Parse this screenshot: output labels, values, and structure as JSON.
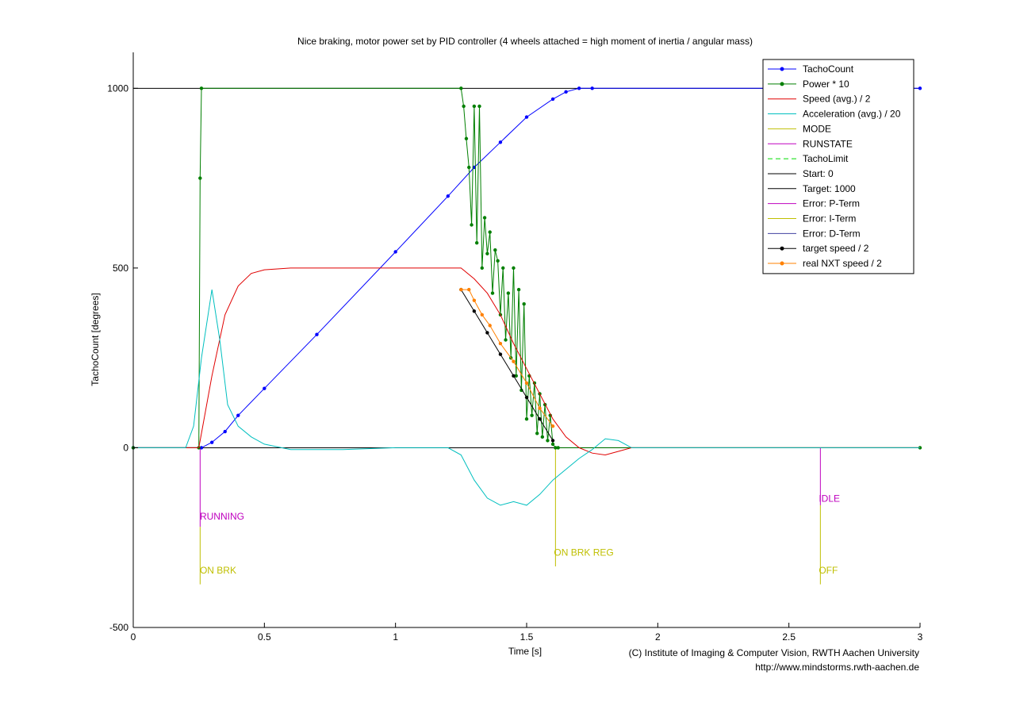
{
  "chart_data": {
    "type": "line",
    "title": "Nice braking, motor power set by PID controller (4 wheels attached = high moment of inertia / angular mass)",
    "xlabel": "Time [s]",
    "ylabel": "TachoCount [degrees]",
    "xlim": [
      0,
      3
    ],
    "ylim": [
      -500,
      1100
    ],
    "xticks": [
      0,
      0.5,
      1,
      1.5,
      2,
      2.5,
      3
    ],
    "xtick_labels": [
      "0",
      "0.5",
      "1",
      "1.5",
      "2",
      "2.5",
      "3"
    ],
    "yticks": [
      -500,
      0,
      500,
      1000
    ],
    "ytick_labels": [
      "-500",
      "0",
      "500",
      "1000"
    ],
    "grid": false,
    "legend_position": "top-right",
    "legend": [
      {
        "label": "TachoCount",
        "color": "#0000ff",
        "style": "solid",
        "marker": "dot"
      },
      {
        "label": "Power * 10",
        "color": "#007f00",
        "style": "solid",
        "marker": "dot"
      },
      {
        "label": "Speed (avg.) / 2",
        "color": "#e00000",
        "style": "solid",
        "marker": ""
      },
      {
        "label": "Acceleration (avg.) / 20",
        "color": "#00bfbf",
        "style": "solid",
        "marker": ""
      },
      {
        "label": "MODE",
        "color": "#bfbf00",
        "style": "solid",
        "marker": ""
      },
      {
        "label": "RUNSTATE",
        "color": "#bf00bf",
        "style": "solid",
        "marker": ""
      },
      {
        "label": "TachoLimit",
        "color": "#00dd00",
        "style": "dashed",
        "marker": ""
      },
      {
        "label": "Start: 0",
        "color": "#000000",
        "style": "solid",
        "marker": ""
      },
      {
        "label": "Target: 1000",
        "color": "#000000",
        "style": "solid",
        "marker": ""
      },
      {
        "label": "Error: P-Term",
        "color": "#bf00bf",
        "style": "solid",
        "marker": ""
      },
      {
        "label": "Error: I-Term",
        "color": "#bfbf00",
        "style": "solid",
        "marker": ""
      },
      {
        "label": "Error: D-Term",
        "color": "#4040a0",
        "style": "solid",
        "marker": ""
      },
      {
        "label": "target speed / 2",
        "color": "#000000",
        "style": "solid",
        "marker": "dot"
      },
      {
        "label": "real NXT speed / 2",
        "color": "#ff8000",
        "style": "solid",
        "marker": "dot"
      }
    ],
    "series": [
      {
        "name": "TachoCount",
        "x": [
          0,
          0.26,
          0.3,
          0.35,
          0.4,
          0.5,
          0.7,
          1.0,
          1.2,
          1.3,
          1.4,
          1.5,
          1.6,
          1.65,
          1.7,
          1.75,
          3.0
        ],
        "y": [
          0,
          0,
          15,
          45,
          90,
          165,
          315,
          545,
          700,
          780,
          850,
          920,
          970,
          990,
          1000,
          1000,
          1000
        ]
      },
      {
        "name": "Power * 10",
        "x": [
          0,
          0.25,
          0.255,
          0.26,
          1.25,
          1.26,
          1.27,
          1.28,
          1.29,
          1.3,
          1.31,
          1.32,
          1.33,
          1.34,
          1.35,
          1.36,
          1.37,
          1.38,
          1.39,
          1.4,
          1.41,
          1.42,
          1.43,
          1.44,
          1.45,
          1.46,
          1.47,
          1.48,
          1.49,
          1.5,
          1.51,
          1.52,
          1.53,
          1.54,
          1.55,
          1.56,
          1.57,
          1.58,
          1.59,
          1.6,
          1.61,
          1.62,
          3.0
        ],
        "y": [
          0,
          0,
          750,
          1000,
          1000,
          950,
          860,
          780,
          620,
          950,
          570,
          950,
          500,
          640,
          540,
          600,
          430,
          550,
          520,
          370,
          500,
          300,
          430,
          250,
          500,
          200,
          440,
          160,
          400,
          80,
          200,
          90,
          180,
          40,
          150,
          30,
          120,
          20,
          90,
          10,
          0,
          0,
          0
        ]
      },
      {
        "name": "Speed (avg.) / 2",
        "x": [
          0,
          0.25,
          0.3,
          0.35,
          0.4,
          0.45,
          0.5,
          0.6,
          0.8,
          1.0,
          1.2,
          1.25,
          1.3,
          1.35,
          1.4,
          1.45,
          1.5,
          1.55,
          1.6,
          1.65,
          1.7,
          1.75,
          1.8,
          1.85,
          1.9,
          3.0
        ],
        "y": [
          0,
          0,
          200,
          370,
          450,
          485,
          495,
          500,
          500,
          500,
          500,
          500,
          470,
          430,
          370,
          290,
          220,
          150,
          80,
          30,
          0,
          -15,
          -20,
          -10,
          0,
          0
        ]
      },
      {
        "name": "Acceleration (avg.) / 20",
        "x": [
          0,
          0.2,
          0.23,
          0.26,
          0.3,
          0.33,
          0.36,
          0.4,
          0.45,
          0.5,
          0.6,
          0.8,
          1.0,
          1.2,
          1.25,
          1.3,
          1.35,
          1.4,
          1.45,
          1.5,
          1.55,
          1.6,
          1.65,
          1.7,
          1.75,
          1.8,
          1.85,
          1.9,
          3.0
        ],
        "y": [
          0,
          0,
          60,
          250,
          440,
          300,
          120,
          60,
          30,
          10,
          -5,
          -5,
          0,
          0,
          -20,
          -90,
          -140,
          -160,
          -150,
          -160,
          -130,
          -90,
          -60,
          -30,
          -5,
          25,
          20,
          0,
          0
        ]
      },
      {
        "name": "target speed / 2",
        "x": [
          1.25,
          1.3,
          1.35,
          1.4,
          1.45,
          1.5,
          1.55,
          1.6
        ],
        "y": [
          440,
          380,
          320,
          260,
          200,
          140,
          80,
          20
        ]
      },
      {
        "name": "real NXT speed / 2",
        "x": [
          1.25,
          1.28,
          1.3,
          1.33,
          1.36,
          1.4,
          1.45,
          1.5,
          1.55,
          1.6
        ],
        "y": [
          440,
          440,
          410,
          370,
          340,
          290,
          240,
          180,
          110,
          60
        ]
      }
    ],
    "reference_lines": [
      {
        "label": "Start: 0",
        "y": 0
      },
      {
        "label": "Target: 1000",
        "y": 1000
      }
    ],
    "annotations": [
      {
        "text": "RUNNING",
        "x": 0.26,
        "y": -200,
        "color": "#bf00bf"
      },
      {
        "text": "ON BRK",
        "x": 0.26,
        "y": -350,
        "color": "#bfbf00"
      },
      {
        "text": "ON BRK REG",
        "x": 1.61,
        "y": -300,
        "color": "#bfbf00"
      },
      {
        "text": "IDLE",
        "x": 2.62,
        "y": -150,
        "color": "#bf00bf"
      },
      {
        "text": "OFF",
        "x": 2.62,
        "y": -350,
        "color": "#bfbf00"
      }
    ],
    "state_markers": [
      {
        "x": 0.255,
        "y_from": 0,
        "y_to": -220,
        "color": "#bf00bf"
      },
      {
        "x": 0.255,
        "y_from": -220,
        "y_to": -380,
        "color": "#bfbf00"
      },
      {
        "x": 1.61,
        "y_from": 0,
        "y_to": -330,
        "color": "#bfbf00"
      },
      {
        "x": 2.62,
        "y_from": 0,
        "y_to": -160,
        "color": "#bf00bf"
      },
      {
        "x": 2.62,
        "y_from": -160,
        "y_to": -380,
        "color": "#bfbf00"
      }
    ]
  },
  "credits": {
    "line1": "(C) Institute of Imaging & Computer Vision, RWTH Aachen University",
    "line2": "http://www.mindstorms.rwth-aachen.de"
  }
}
